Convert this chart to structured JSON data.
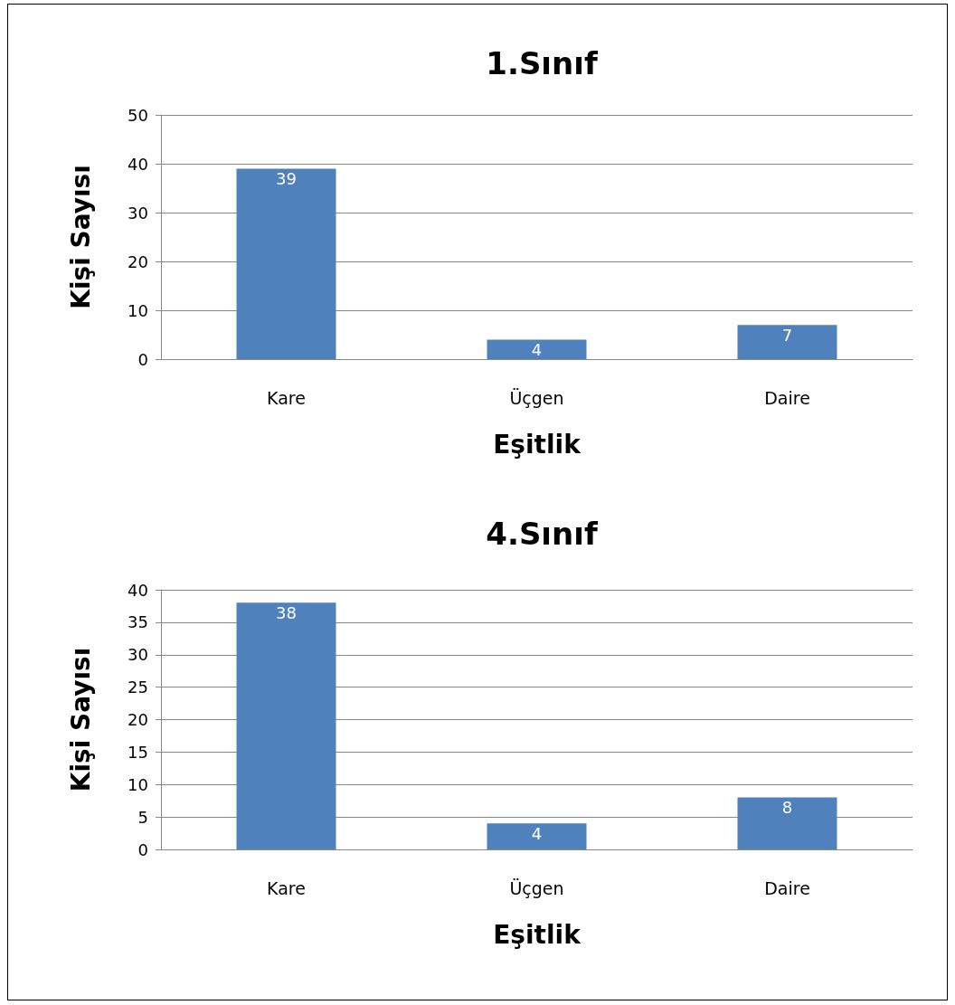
{
  "chart_data": [
    {
      "type": "bar",
      "title": "1.Sınıf",
      "xlabel": "Eşitlik",
      "ylabel": "Kişi Sayısı",
      "categories": [
        "Kare",
        "Üçgen",
        "Daire"
      ],
      "values": [
        39,
        4,
        7
      ],
      "color": "#4f81bd",
      "ylim": [
        0,
        50
      ],
      "yticks": [
        0,
        10,
        20,
        30,
        40,
        50
      ],
      "grid": "y",
      "data_labels": true
    },
    {
      "type": "bar",
      "title": "4.Sınıf",
      "xlabel": "Eşitlik",
      "ylabel": "Kişi Sayısı",
      "categories": [
        "Kare",
        "Üçgen",
        "Daire"
      ],
      "values": [
        38,
        4,
        8
      ],
      "color": "#4f81bd",
      "ylim": [
        0,
        40
      ],
      "yticks": [
        0,
        5,
        10,
        15,
        20,
        25,
        30,
        35,
        40
      ],
      "grid": "y",
      "data_labels": true
    }
  ]
}
